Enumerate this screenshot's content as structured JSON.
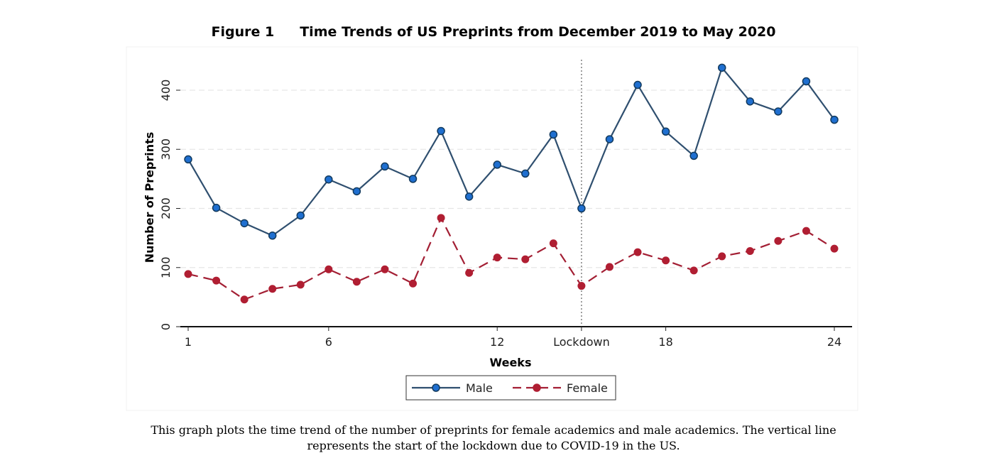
{
  "figure": {
    "number": "Figure 1",
    "title": "Time Trends of US Preprints from December 2019 to May 2020",
    "caption": "This graph plots the time trend of the number of preprints for female academics and male academics. The vertical line represents the start of the lockdown due to COVID-19 in the US."
  },
  "chart_data": {
    "type": "line",
    "xlabel": "Weeks",
    "ylabel": "Number of Preprints",
    "xlim": [
      1,
      24
    ],
    "ylim": [
      0,
      450
    ],
    "x_ticks": [
      {
        "value": 1,
        "label": "1"
      },
      {
        "value": 6,
        "label": "6"
      },
      {
        "value": 12,
        "label": "12"
      },
      {
        "value": 15,
        "label": "Lockdown"
      },
      {
        "value": 18,
        "label": "18"
      },
      {
        "value": 24,
        "label": "24"
      }
    ],
    "y_ticks": [
      0,
      100,
      200,
      300,
      400
    ],
    "grid": "horizontal dashed",
    "reference_line": {
      "x": 15,
      "style": "dotted vertical"
    },
    "x": [
      1,
      2,
      3,
      4,
      5,
      6,
      7,
      8,
      9,
      10,
      11,
      12,
      13,
      14,
      15,
      16,
      17,
      18,
      19,
      20,
      21,
      22,
      23,
      24
    ],
    "series": [
      {
        "name": "Male",
        "color": "#2f4f6f",
        "marker_color": "#1f6fd0",
        "line_style": "solid",
        "values": [
          283,
          201,
          175,
          154,
          188,
          249,
          229,
          271,
          250,
          331,
          220,
          274,
          259,
          325,
          200,
          317,
          409,
          330,
          289,
          438,
          381,
          364,
          415,
          350
        ]
      },
      {
        "name": "Female",
        "color": "#a31f34",
        "marker_color": "#b01e32",
        "line_style": "dashed",
        "values": [
          89,
          78,
          46,
          64,
          71,
          97,
          76,
          97,
          73,
          184,
          91,
          117,
          114,
          141,
          69,
          101,
          126,
          112,
          95,
          119,
          128,
          145,
          162,
          132
        ]
      }
    ],
    "legend": {
      "placement": "bottom-center",
      "entries": [
        "Male",
        "Female"
      ]
    }
  }
}
